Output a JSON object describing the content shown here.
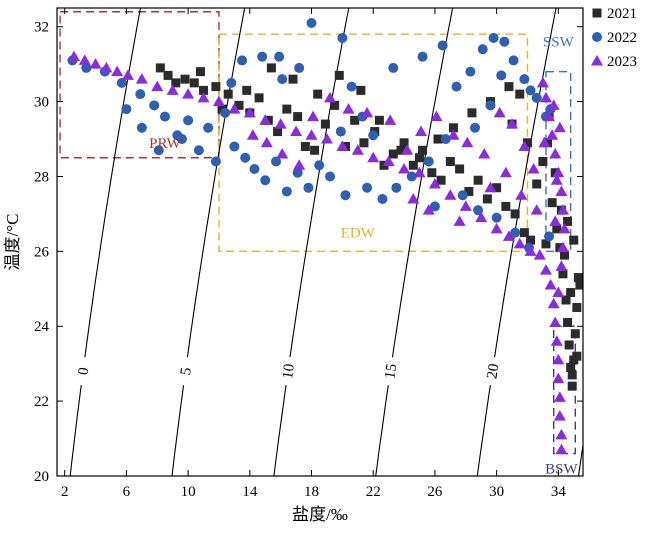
{
  "chart_data": {
    "type": "scatter",
    "xlabel": "盐度/‰",
    "ylabel": "温度/°C",
    "xlim": [
      1.5,
      35.6
    ],
    "ylim": [
      20,
      32.5
    ],
    "x_ticks": [
      2,
      6,
      10,
      14,
      18,
      22,
      26,
      30,
      34
    ],
    "y_ticks": [
      20,
      22,
      24,
      26,
      28,
      30,
      32
    ],
    "legend_position": "top-right",
    "series": [
      {
        "name": "2021",
        "marker": "square",
        "color": "#2b2b2b",
        "points": [
          [
            8.2,
            30.9
          ],
          [
            8.7,
            30.7
          ],
          [
            9.2,
            30.5
          ],
          [
            9.8,
            30.6
          ],
          [
            10.4,
            30.5
          ],
          [
            11,
            30.3
          ],
          [
            11.8,
            30.4
          ],
          [
            12.6,
            30.2
          ],
          [
            13.3,
            29.9
          ],
          [
            14,
            29.7
          ],
          [
            14.6,
            30.1
          ],
          [
            15.2,
            29.5
          ],
          [
            15.8,
            29.2
          ],
          [
            16.4,
            29.8
          ],
          [
            17.1,
            29.6
          ],
          [
            17.6,
            28.8
          ],
          [
            18.2,
            28.7
          ],
          [
            18.9,
            29.4
          ],
          [
            19.5,
            29.9
          ],
          [
            20.2,
            28.8
          ],
          [
            20.8,
            29.5
          ],
          [
            21.4,
            28.9
          ],
          [
            22.1,
            29.2
          ],
          [
            22.7,
            28.3
          ],
          [
            23.3,
            28.6
          ],
          [
            24,
            28.9
          ],
          [
            24.6,
            28.3
          ],
          [
            25.2,
            28.7
          ],
          [
            25.8,
            28.1
          ],
          [
            26.4,
            27.9
          ],
          [
            27,
            28.4
          ],
          [
            27.6,
            28.2
          ],
          [
            28.2,
            27.6
          ],
          [
            28.8,
            27.9
          ],
          [
            29.4,
            27.4
          ],
          [
            30,
            27.7
          ],
          [
            30.6,
            27.2
          ],
          [
            31.2,
            27
          ],
          [
            31.8,
            26.5
          ],
          [
            32.2,
            26.3
          ],
          [
            32.6,
            27.8
          ],
          [
            33,
            28.4
          ],
          [
            33.3,
            28.9
          ],
          [
            33.6,
            27.3
          ],
          [
            33.9,
            26.6
          ],
          [
            34.1,
            26.1
          ],
          [
            34.3,
            25.4
          ],
          [
            34.5,
            24.7
          ],
          [
            34.6,
            24.1
          ],
          [
            34.7,
            23.5
          ],
          [
            34.8,
            22.9
          ],
          [
            34.9,
            22.4
          ],
          [
            35,
            23.1
          ],
          [
            35.1,
            23.8
          ],
          [
            35.2,
            24.5
          ],
          [
            35.3,
            25.3
          ],
          [
            35.4,
            25.1
          ],
          [
            34.4,
            25.9
          ],
          [
            34.2,
            27.1
          ],
          [
            33.8,
            28.1
          ],
          [
            33.4,
            29.6
          ],
          [
            31.5,
            30.2
          ],
          [
            30.8,
            30.4
          ],
          [
            29.6,
            30
          ],
          [
            28.4,
            29.7
          ],
          [
            27.2,
            29.3
          ],
          [
            26.2,
            29
          ],
          [
            25,
            28.5
          ],
          [
            23.8,
            28.7
          ],
          [
            22.4,
            29.5
          ],
          [
            21.2,
            30.3
          ],
          [
            19.8,
            30.7
          ],
          [
            18.4,
            30.2
          ],
          [
            16.8,
            30.6
          ],
          [
            15.4,
            30.9
          ],
          [
            13.8,
            30.3
          ],
          [
            12.2,
            29.8
          ],
          [
            10.8,
            30.8
          ],
          [
            31,
            29.4
          ],
          [
            32,
            28.9
          ],
          [
            34.6,
            26.8
          ],
          [
            35,
            26.3
          ],
          [
            33.2,
            26.2
          ],
          [
            34.8,
            24.9
          ],
          [
            35.2,
            23.2
          ],
          [
            34.9,
            22.7
          ]
        ]
      },
      {
        "name": "2022",
        "marker": "circle",
        "color": "#2d5fb5",
        "points": [
          [
            2.5,
            31.1
          ],
          [
            3.4,
            30.9
          ],
          [
            4.6,
            30.8
          ],
          [
            5.7,
            30.5
          ],
          [
            6.9,
            30.2
          ],
          [
            7.8,
            29.9
          ],
          [
            8.5,
            29.6
          ],
          [
            9.3,
            29.1
          ],
          [
            10,
            29.5
          ],
          [
            10.7,
            28.7
          ],
          [
            11.3,
            29.3
          ],
          [
            12.4,
            29.7
          ],
          [
            13,
            28.8
          ],
          [
            13.7,
            28.5
          ],
          [
            14.3,
            28.2
          ],
          [
            15,
            27.9
          ],
          [
            15.7,
            28.4
          ],
          [
            16.4,
            27.6
          ],
          [
            17.1,
            28.1
          ],
          [
            17.8,
            27.7
          ],
          [
            18.5,
            28.3
          ],
          [
            19.2,
            28
          ],
          [
            19.9,
            29.2
          ],
          [
            20.6,
            30.4
          ],
          [
            21.3,
            29.6
          ],
          [
            22,
            29.1
          ],
          [
            14.8,
            31.2
          ],
          [
            15.9,
            31.2
          ],
          [
            18,
            32.1
          ],
          [
            20,
            31.7
          ],
          [
            17.2,
            30.9
          ],
          [
            16.1,
            30.6
          ],
          [
            13.5,
            31.1
          ],
          [
            12.8,
            30.5
          ],
          [
            23.3,
            30.9
          ],
          [
            25.2,
            31.2
          ],
          [
            26.5,
            31.5
          ],
          [
            27.4,
            30.4
          ],
          [
            28.3,
            30.8
          ],
          [
            29.1,
            31.4
          ],
          [
            29.8,
            31.7
          ],
          [
            30.5,
            31.6
          ],
          [
            31.1,
            31.1
          ],
          [
            31.8,
            30.6
          ],
          [
            32.2,
            30.3
          ],
          [
            32.6,
            30.1
          ],
          [
            33.2,
            29.6
          ],
          [
            33.5,
            29.8
          ],
          [
            30.3,
            30.7
          ],
          [
            29.6,
            29.9
          ],
          [
            28.6,
            29.3
          ],
          [
            26.7,
            29
          ],
          [
            25.6,
            28.4
          ],
          [
            24.5,
            28
          ],
          [
            23.5,
            27.7
          ],
          [
            22.6,
            27.4
          ],
          [
            21.6,
            27.7
          ],
          [
            20.2,
            27.5
          ],
          [
            26,
            27.2
          ],
          [
            27.8,
            27.5
          ],
          [
            28.8,
            27.1
          ],
          [
            30,
            26.9
          ],
          [
            31.2,
            26.5
          ],
          [
            32.1,
            26.1
          ],
          [
            33.4,
            26.4
          ],
          [
            9.6,
            29
          ],
          [
            8.1,
            28.7
          ],
          [
            7,
            29.3
          ],
          [
            6,
            29.8
          ],
          [
            11.8,
            28.4
          ]
        ]
      },
      {
        "name": "2023",
        "marker": "triangle",
        "color": "#8a2be2",
        "points": [
          [
            2.6,
            31.2
          ],
          [
            3.3,
            31.1
          ],
          [
            4,
            31
          ],
          [
            4.7,
            30.9
          ],
          [
            5.4,
            30.8
          ],
          [
            6.1,
            30.7
          ],
          [
            7,
            30.6
          ],
          [
            8,
            30.4
          ],
          [
            9,
            30.3
          ],
          [
            10,
            30.2
          ],
          [
            11,
            30.1
          ],
          [
            12,
            30
          ],
          [
            13,
            29.8
          ],
          [
            14,
            29.7
          ],
          [
            15,
            29.5
          ],
          [
            16,
            29.4
          ],
          [
            17,
            29.2
          ],
          [
            18,
            29.1
          ],
          [
            19,
            29
          ],
          [
            20,
            28.8
          ],
          [
            21,
            28.7
          ],
          [
            22,
            28.5
          ],
          [
            23,
            28.4
          ],
          [
            24,
            28.2
          ],
          [
            25,
            28.1
          ],
          [
            26,
            27.8
          ],
          [
            27,
            27.5
          ],
          [
            28,
            27.2
          ],
          [
            29,
            26.9
          ],
          [
            30,
            26.6
          ],
          [
            30.8,
            26.4
          ],
          [
            31.5,
            26.2
          ],
          [
            32.2,
            26
          ],
          [
            32.8,
            25.9
          ],
          [
            33.2,
            25.5
          ],
          [
            33.5,
            25.1
          ],
          [
            33.7,
            24.6
          ],
          [
            33.8,
            24.1
          ],
          [
            33.9,
            23.6
          ],
          [
            34,
            23.1
          ],
          [
            34,
            22.6
          ],
          [
            34.1,
            22.1
          ],
          [
            34.1,
            21.6
          ],
          [
            34.2,
            21.1
          ],
          [
            34.2,
            20.7
          ],
          [
            33,
            30.5
          ],
          [
            33.2,
            30.1
          ],
          [
            33.4,
            29.6
          ],
          [
            33.6,
            29.1
          ],
          [
            33.8,
            28.6
          ],
          [
            34,
            28.1
          ],
          [
            34.2,
            27.6
          ],
          [
            34.3,
            27.1
          ],
          [
            34.4,
            26.6
          ],
          [
            34.3,
            26.1
          ],
          [
            32.4,
            28.2
          ],
          [
            31.8,
            28.8
          ],
          [
            31,
            29.4
          ],
          [
            30.2,
            29.7
          ],
          [
            29.2,
            28.6
          ],
          [
            28.1,
            28.9
          ],
          [
            27.2,
            29.1
          ],
          [
            26.1,
            29.6
          ],
          [
            25.1,
            29.2
          ],
          [
            24.2,
            28.7
          ],
          [
            23.1,
            29.5
          ],
          [
            21.6,
            29.7
          ],
          [
            20.4,
            29.8
          ],
          [
            19.2,
            30.1
          ],
          [
            18.1,
            29.6
          ],
          [
            17.2,
            28.3
          ],
          [
            16.1,
            28.6
          ],
          [
            15.1,
            28.9
          ],
          [
            14.2,
            29.1
          ],
          [
            24.6,
            27.4
          ],
          [
            25.6,
            27.1
          ],
          [
            27.6,
            26.8
          ],
          [
            29.6,
            27.7
          ],
          [
            30.6,
            28.1
          ],
          [
            31.6,
            27.5
          ],
          [
            32.6,
            27.1
          ],
          [
            33.1,
            28.9
          ],
          [
            33.7,
            29.9
          ],
          [
            34.1,
            29.3
          ],
          [
            33.9,
            27.9
          ],
          [
            34.2,
            25.6
          ],
          [
            34.0,
            24.9
          ],
          [
            33.8,
            26.8
          ]
        ]
      }
    ],
    "isopycnals": [
      {
        "label": "0",
        "sigma": 0
      },
      {
        "label": "5",
        "sigma": 5
      },
      {
        "label": "10",
        "sigma": 10
      },
      {
        "label": "15",
        "sigma": 15
      },
      {
        "label": "20",
        "sigma": 20
      },
      {
        "label": "",
        "sigma": 25
      }
    ],
    "water_masses": [
      {
        "label": "PRW",
        "color": "#b5312f",
        "s": [
          1.7,
          12
        ],
        "t": [
          28.5,
          32.4
        ],
        "label_at": [
          8.5,
          28.9
        ]
      },
      {
        "label": "EDW",
        "color": "#e8b420",
        "s": [
          12,
          32
        ],
        "t": [
          26,
          31.8
        ],
        "label_at": [
          21,
          26.5
        ]
      },
      {
        "label": "SSW",
        "color": "#3a73c6",
        "s": [
          33.2,
          34.8
        ],
        "t": [
          26,
          30.8
        ],
        "label_at": [
          34,
          31.6
        ]
      },
      {
        "label": "BSW",
        "color": "#3e3a8a",
        "s": [
          33.7,
          35.1
        ],
        "t": [
          20.6,
          24
        ],
        "label_at": [
          34.2,
          20.2
        ]
      }
    ]
  }
}
